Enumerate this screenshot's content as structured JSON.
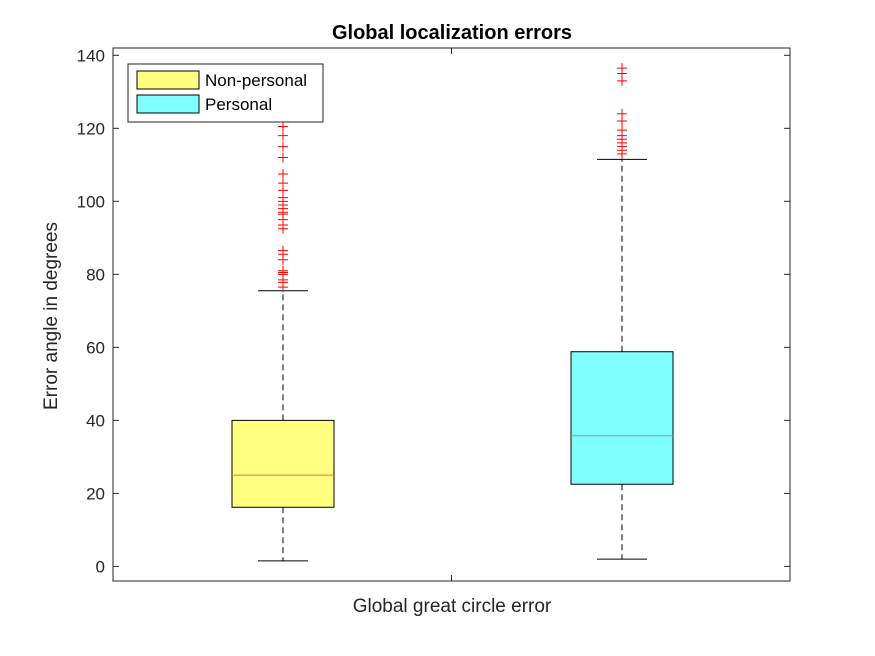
{
  "chart_data": {
    "type": "boxplot",
    "title": "Global localization errors",
    "xlabel": "Global great circle error",
    "ylabel": "Error angle in degrees",
    "ylim": [
      -4,
      142
    ],
    "yticks": [
      0,
      20,
      40,
      60,
      80,
      100,
      120,
      140
    ],
    "grid": false,
    "legend_position": "top-left",
    "series": [
      {
        "name": "Non-personal",
        "color": "#ffff80",
        "median_color": "#ff6b3d",
        "whisker_low": 1.5,
        "q1": 16.2,
        "median": 25.0,
        "q3": 40.0,
        "whisker_high": 75.5,
        "outliers": [
          76.5,
          77.8,
          78.5,
          80.0,
          80.5,
          81.0,
          84.0,
          85.5,
          86.5,
          92.5,
          93.5,
          95.0,
          96.5,
          97.0,
          98.0,
          99.0,
          100.0,
          101.0,
          103.0,
          105.0,
          107.5,
          112.0,
          115.0,
          118.0,
          120.5
        ]
      },
      {
        "name": "Personal",
        "color": "#80ffff",
        "median_color": "#7f9f9f",
        "whisker_low": 2.0,
        "q1": 22.5,
        "median": 35.8,
        "q3": 58.8,
        "whisker_high": 111.5,
        "outliers": [
          113.0,
          114.0,
          115.0,
          116.0,
          117.0,
          118.0,
          119.5,
          122.0,
          124.0,
          133.0,
          135.0,
          136.5
        ]
      }
    ]
  }
}
